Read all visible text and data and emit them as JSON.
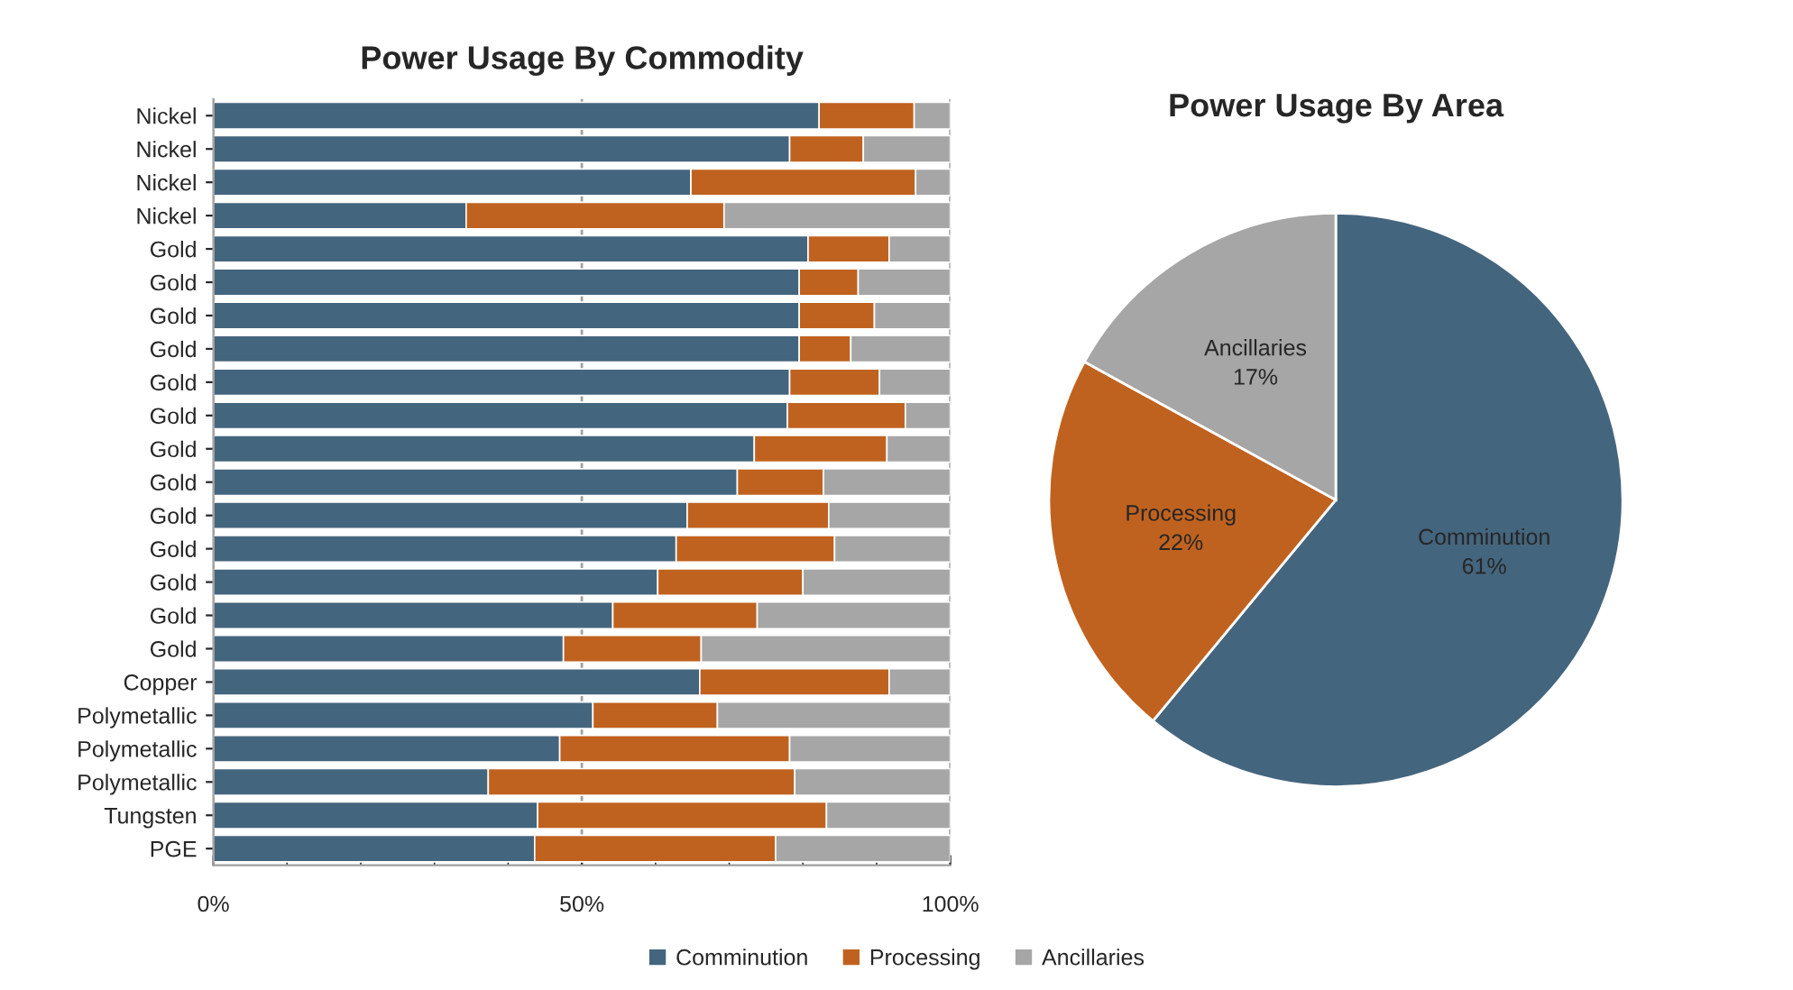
{
  "chart_data": [
    {
      "type": "bar",
      "title": "Power Usage By Commodity",
      "orientation": "horizontal",
      "stacked": true,
      "categories": [
        "Nickel",
        "Nickel",
        "Nickel",
        "Nickel",
        "Gold",
        "Gold",
        "Gold",
        "Gold",
        "Gold",
        "Gold",
        "Gold",
        "Gold",
        "Gold",
        "Gold",
        "Gold",
        "Gold",
        "Gold",
        "Copper",
        "Polymetallic",
        "Polymetallic",
        "Polymetallic",
        "Tungsten",
        "PGE"
      ],
      "series": [
        {
          "name": "Comminution",
          "color": "#44657e",
          "values": [
            82.2,
            78.2,
            64.8,
            34.3,
            80.7,
            79.5,
            79.5,
            79.5,
            78.2,
            77.9,
            73.4,
            71.1,
            64.3,
            62.8,
            60.3,
            54.2,
            47.5,
            66.0,
            51.5,
            47.0,
            37.3,
            44.0,
            43.6
          ]
        },
        {
          "name": "Processing",
          "color": "#c0621f",
          "values": [
            12.9,
            10.0,
            30.5,
            35.0,
            11.0,
            8.0,
            10.2,
            7.0,
            12.2,
            16.0,
            18.0,
            11.7,
            19.2,
            21.5,
            19.7,
            19.6,
            18.7,
            25.7,
            16.9,
            31.2,
            41.6,
            39.2,
            32.7
          ]
        },
        {
          "name": "Ancillaries",
          "color": "#a6a6a6",
          "values": [
            4.9,
            11.8,
            4.7,
            30.7,
            8.3,
            12.5,
            10.3,
            13.5,
            9.6,
            6.1,
            8.6,
            17.2,
            16.5,
            15.7,
            20.0,
            26.2,
            33.8,
            8.3,
            31.6,
            21.8,
            21.1,
            16.8,
            23.7
          ]
        }
      ],
      "xlim": [
        0,
        100
      ],
      "xticks": [
        {
          "value": 0,
          "label": "0%"
        },
        {
          "value": 10,
          "label": null
        },
        {
          "value": 20,
          "label": null
        },
        {
          "value": 30,
          "label": null
        },
        {
          "value": 40,
          "label": null
        },
        {
          "value": 50,
          "label": "50%"
        },
        {
          "value": 60,
          "label": null
        },
        {
          "value": 70,
          "label": null
        },
        {
          "value": 80,
          "label": null
        },
        {
          "value": 90,
          "label": null
        },
        {
          "value": 100,
          "label": "100%"
        }
      ],
      "grid": "x",
      "legend": "bottom"
    },
    {
      "type": "pie",
      "title": "Power Usage By Area",
      "categories": [
        "Comminution",
        "Processing",
        "Ancillaries"
      ],
      "values": [
        61,
        22,
        17
      ],
      "value_labels": [
        "61%",
        "22%",
        "17%"
      ],
      "colors": [
        "#44657e",
        "#c0621f",
        "#a6a6a6"
      ]
    }
  ]
}
